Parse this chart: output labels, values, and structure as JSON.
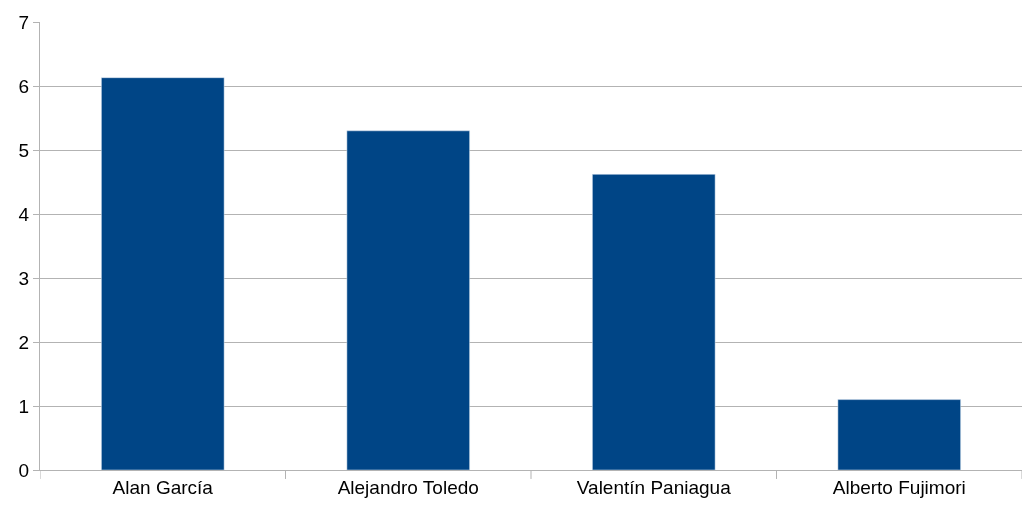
{
  "chart_data": {
    "type": "bar",
    "categories": [
      "Alan García",
      "Alejandro Toledo",
      "Valentín Paniagua",
      "Alberto Fujimori"
    ],
    "values": [
      6.13,
      5.3,
      4.62,
      1.1
    ],
    "color": "#004586",
    "ylim": [
      0,
      7
    ],
    "yticks": [
      0,
      1,
      2,
      3,
      4,
      5,
      6,
      7
    ],
    "grid": "y"
  }
}
